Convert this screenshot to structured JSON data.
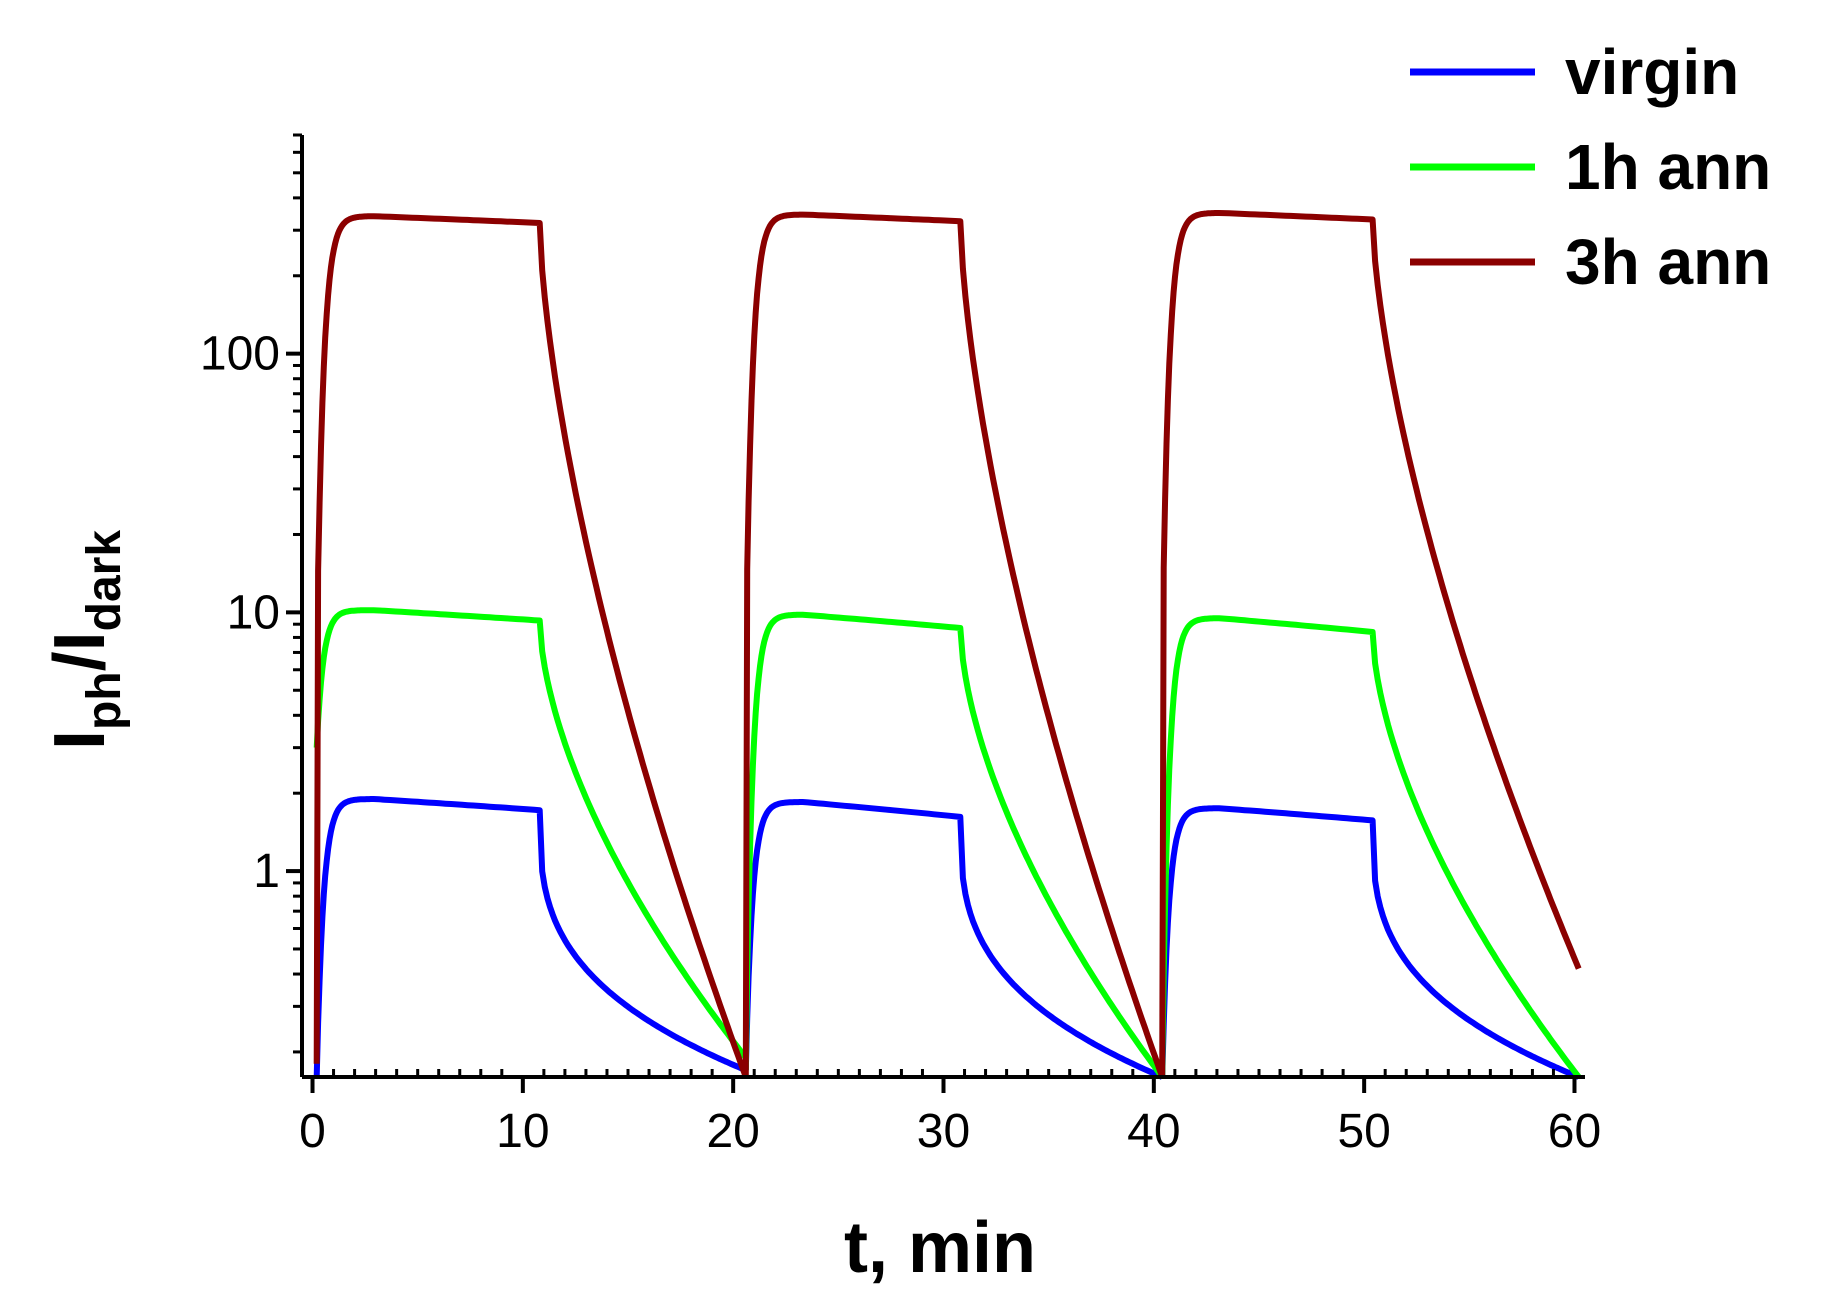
{
  "chart_data": {
    "type": "line",
    "title": "",
    "xlabel": "t, min",
    "ylabel": {
      "main1": "I",
      "sub1": "ph",
      "slash": "/",
      "main2": "I",
      "sub2": "dark"
    },
    "xlim": [
      -0.5,
      60.5
    ],
    "ylim": [
      0.16,
      700
    ],
    "yscale": "log",
    "x_ticks": [
      0,
      10,
      20,
      30,
      40,
      50,
      60
    ],
    "y_ticks": [
      1,
      10,
      100
    ],
    "legend_position": "top-right",
    "cycles": [
      {
        "on": 0.2,
        "off": 10.8,
        "end": 20.6
      },
      {
        "on": 20.6,
        "off": 30.8,
        "end": 40.4
      },
      {
        "on": 40.4,
        "off": 50.4,
        "end": 60.2
      }
    ],
    "series": [
      {
        "name": "virgin",
        "color": "#0000ff",
        "peak": [
          1.9,
          1.85,
          1.75
        ],
        "plateau_end": [
          1.72,
          1.62,
          1.57
        ],
        "cycle_end": [
          0.17,
          0.16,
          0.16
        ],
        "start_value": [
          0.16,
          0.17,
          0.16
        ],
        "decay_shape": 0.6
      },
      {
        "name": "1h ann",
        "color": "#00ff00",
        "peak": [
          10.2,
          9.8,
          9.5
        ],
        "plateau_end": [
          9.3,
          8.7,
          8.4
        ],
        "cycle_end": [
          0.19,
          0.16,
          0.16
        ],
        "start_value": [
          3.0,
          0.17,
          0.16
        ],
        "decay_shape": 1.1
      },
      {
        "name": "3h ann",
        "color": "#8b0000",
        "peak": [
          340,
          345,
          350
        ],
        "plateau_end": [
          320,
          325,
          330
        ],
        "cycle_end": [
          0.16,
          0.16,
          0.42
        ],
        "start_value": [
          0.18,
          0.16,
          0.16
        ],
        "decay_shape": 1.2
      }
    ]
  }
}
